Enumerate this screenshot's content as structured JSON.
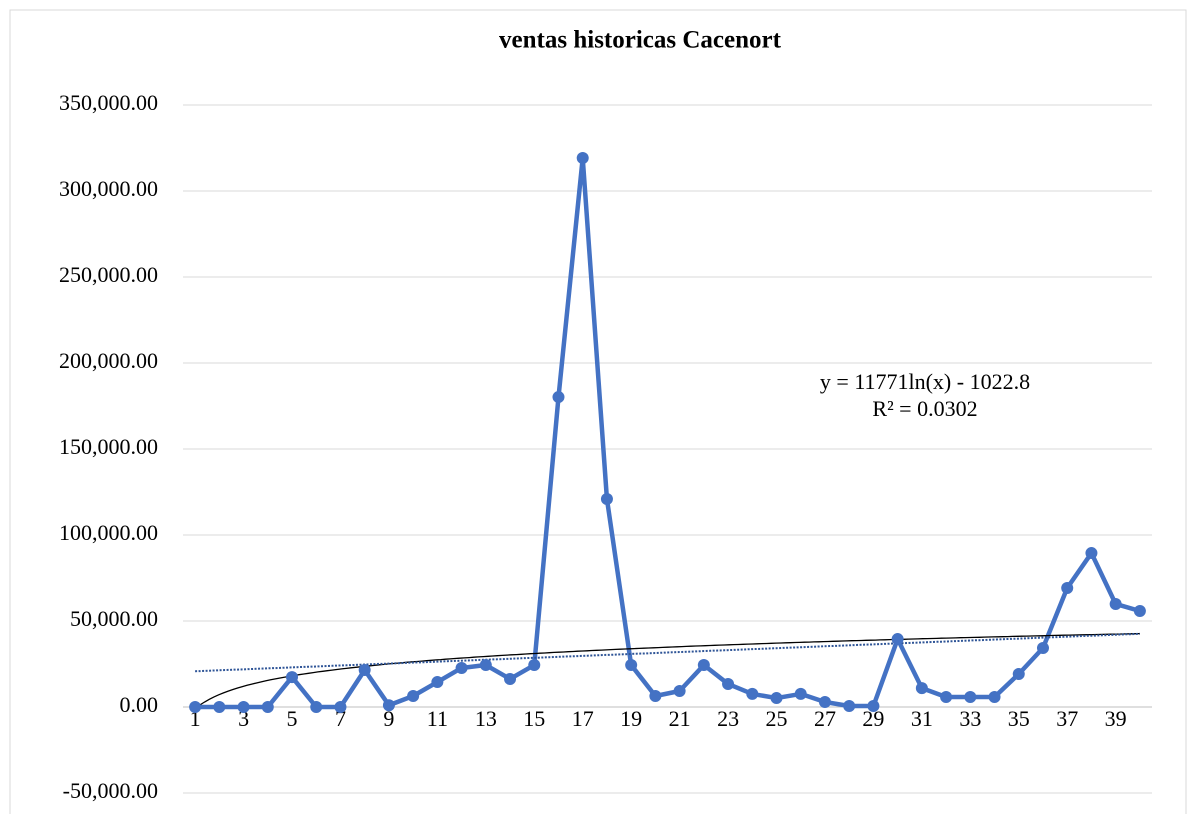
{
  "chart_data": {
    "type": "line",
    "title": "ventas historicas Cacenort",
    "categories": [
      "1",
      null,
      "3",
      null,
      "5",
      null,
      "7",
      null,
      "9",
      null,
      "11",
      null,
      "13",
      null,
      "15",
      null,
      "17",
      null,
      "19",
      null,
      "21",
      null,
      "23",
      null,
      "25",
      null,
      "27",
      null,
      "29",
      null,
      "31",
      null,
      "33",
      null,
      "35",
      null,
      "37",
      null,
      "39",
      null
    ],
    "values": [
      0,
      0,
      0,
      0,
      17400,
      0,
      0,
      21500,
      1000,
      6400,
      14500,
      22700,
      24400,
      16300,
      24400,
      180200,
      319200,
      120900,
      24400,
      6400,
      9300,
      24400,
      13400,
      7600,
      5200,
      7600,
      2900,
      600,
      600,
      39500,
      11000,
      5800,
      5800,
      5800,
      19200,
      34300,
      69200,
      89500,
      59900,
      55800
    ],
    "color": "#4472c4",
    "ylim": [
      -50000,
      350000
    ],
    "yticks": [
      {
        "value": -50000,
        "label": "-50,000.00"
      },
      {
        "value": 0,
        "label": "0.00"
      },
      {
        "value": 50000,
        "label": "50,000.00"
      },
      {
        "value": 100000,
        "label": "100,000.00"
      },
      {
        "value": 150000,
        "label": "150,000.00"
      },
      {
        "value": 200000,
        "label": "200,000.00"
      },
      {
        "value": 250000,
        "label": "250,000.00"
      },
      {
        "value": 300000,
        "label": "300,000.00"
      },
      {
        "value": 350000,
        "label": "350,000.00"
      }
    ],
    "grid": true,
    "trendlines": [
      {
        "type": "logarithmic",
        "color": "#000000"
      },
      {
        "type": "linear",
        "color": "#2f5597"
      }
    ],
    "annotations": [
      "y = 11771ln(x) - 1022.8",
      "R² = 0.0302"
    ]
  }
}
